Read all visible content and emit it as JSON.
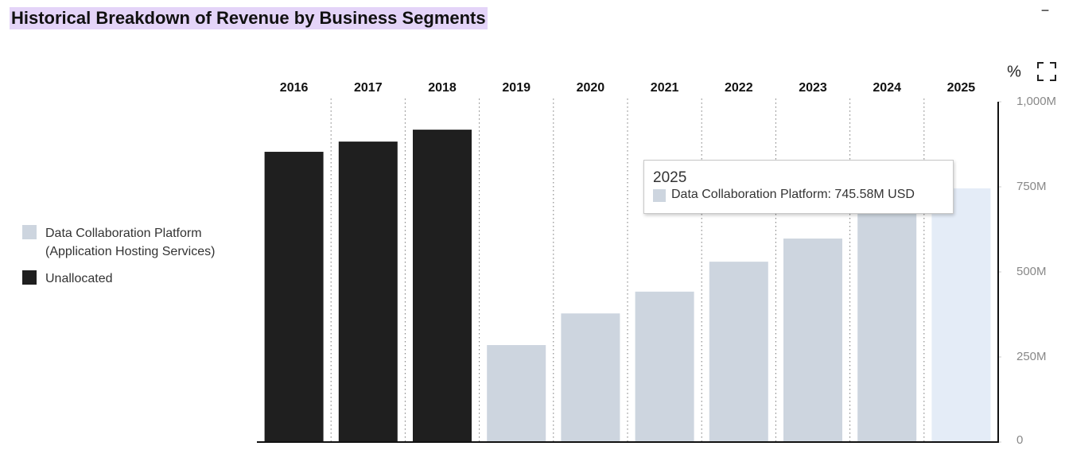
{
  "chart_data": {
    "type": "bar",
    "title": "Historical Breakdown of Revenue by Business Segments",
    "categories": [
      "2016",
      "2017",
      "2018",
      "2019",
      "2020",
      "2021",
      "2022",
      "2023",
      "2024",
      "2025"
    ],
    "series": [
      {
        "name": "Data Collaboration Platform (Application Hosting Services)",
        "color": "#cdd5df",
        "values": [
          null,
          null,
          null,
          285,
          378,
          442,
          530,
          598,
          680,
          745.58
        ]
      },
      {
        "name": "Unallocated",
        "color": "#1f1f1f",
        "values": [
          853,
          883,
          918,
          null,
          null,
          null,
          null,
          null,
          null,
          null
        ]
      }
    ],
    "highlight": {
      "series": 0,
      "index": 9,
      "color": "#e4ecf7"
    },
    "tooltip": {
      "title": "2025",
      "text": "Data Collaboration Platform: 745.58M USD"
    },
    "ylim": [
      0,
      1000
    ],
    "yticks": [
      0,
      {
        "value": 250,
        "label": "250M"
      },
      {
        "value": 500,
        "label": "500M"
      },
      {
        "value": 750,
        "label": "750M"
      },
      {
        "value": 1000,
        "label": "1,000M"
      }
    ],
    "percent_toggle": "%",
    "collapse": "−"
  }
}
